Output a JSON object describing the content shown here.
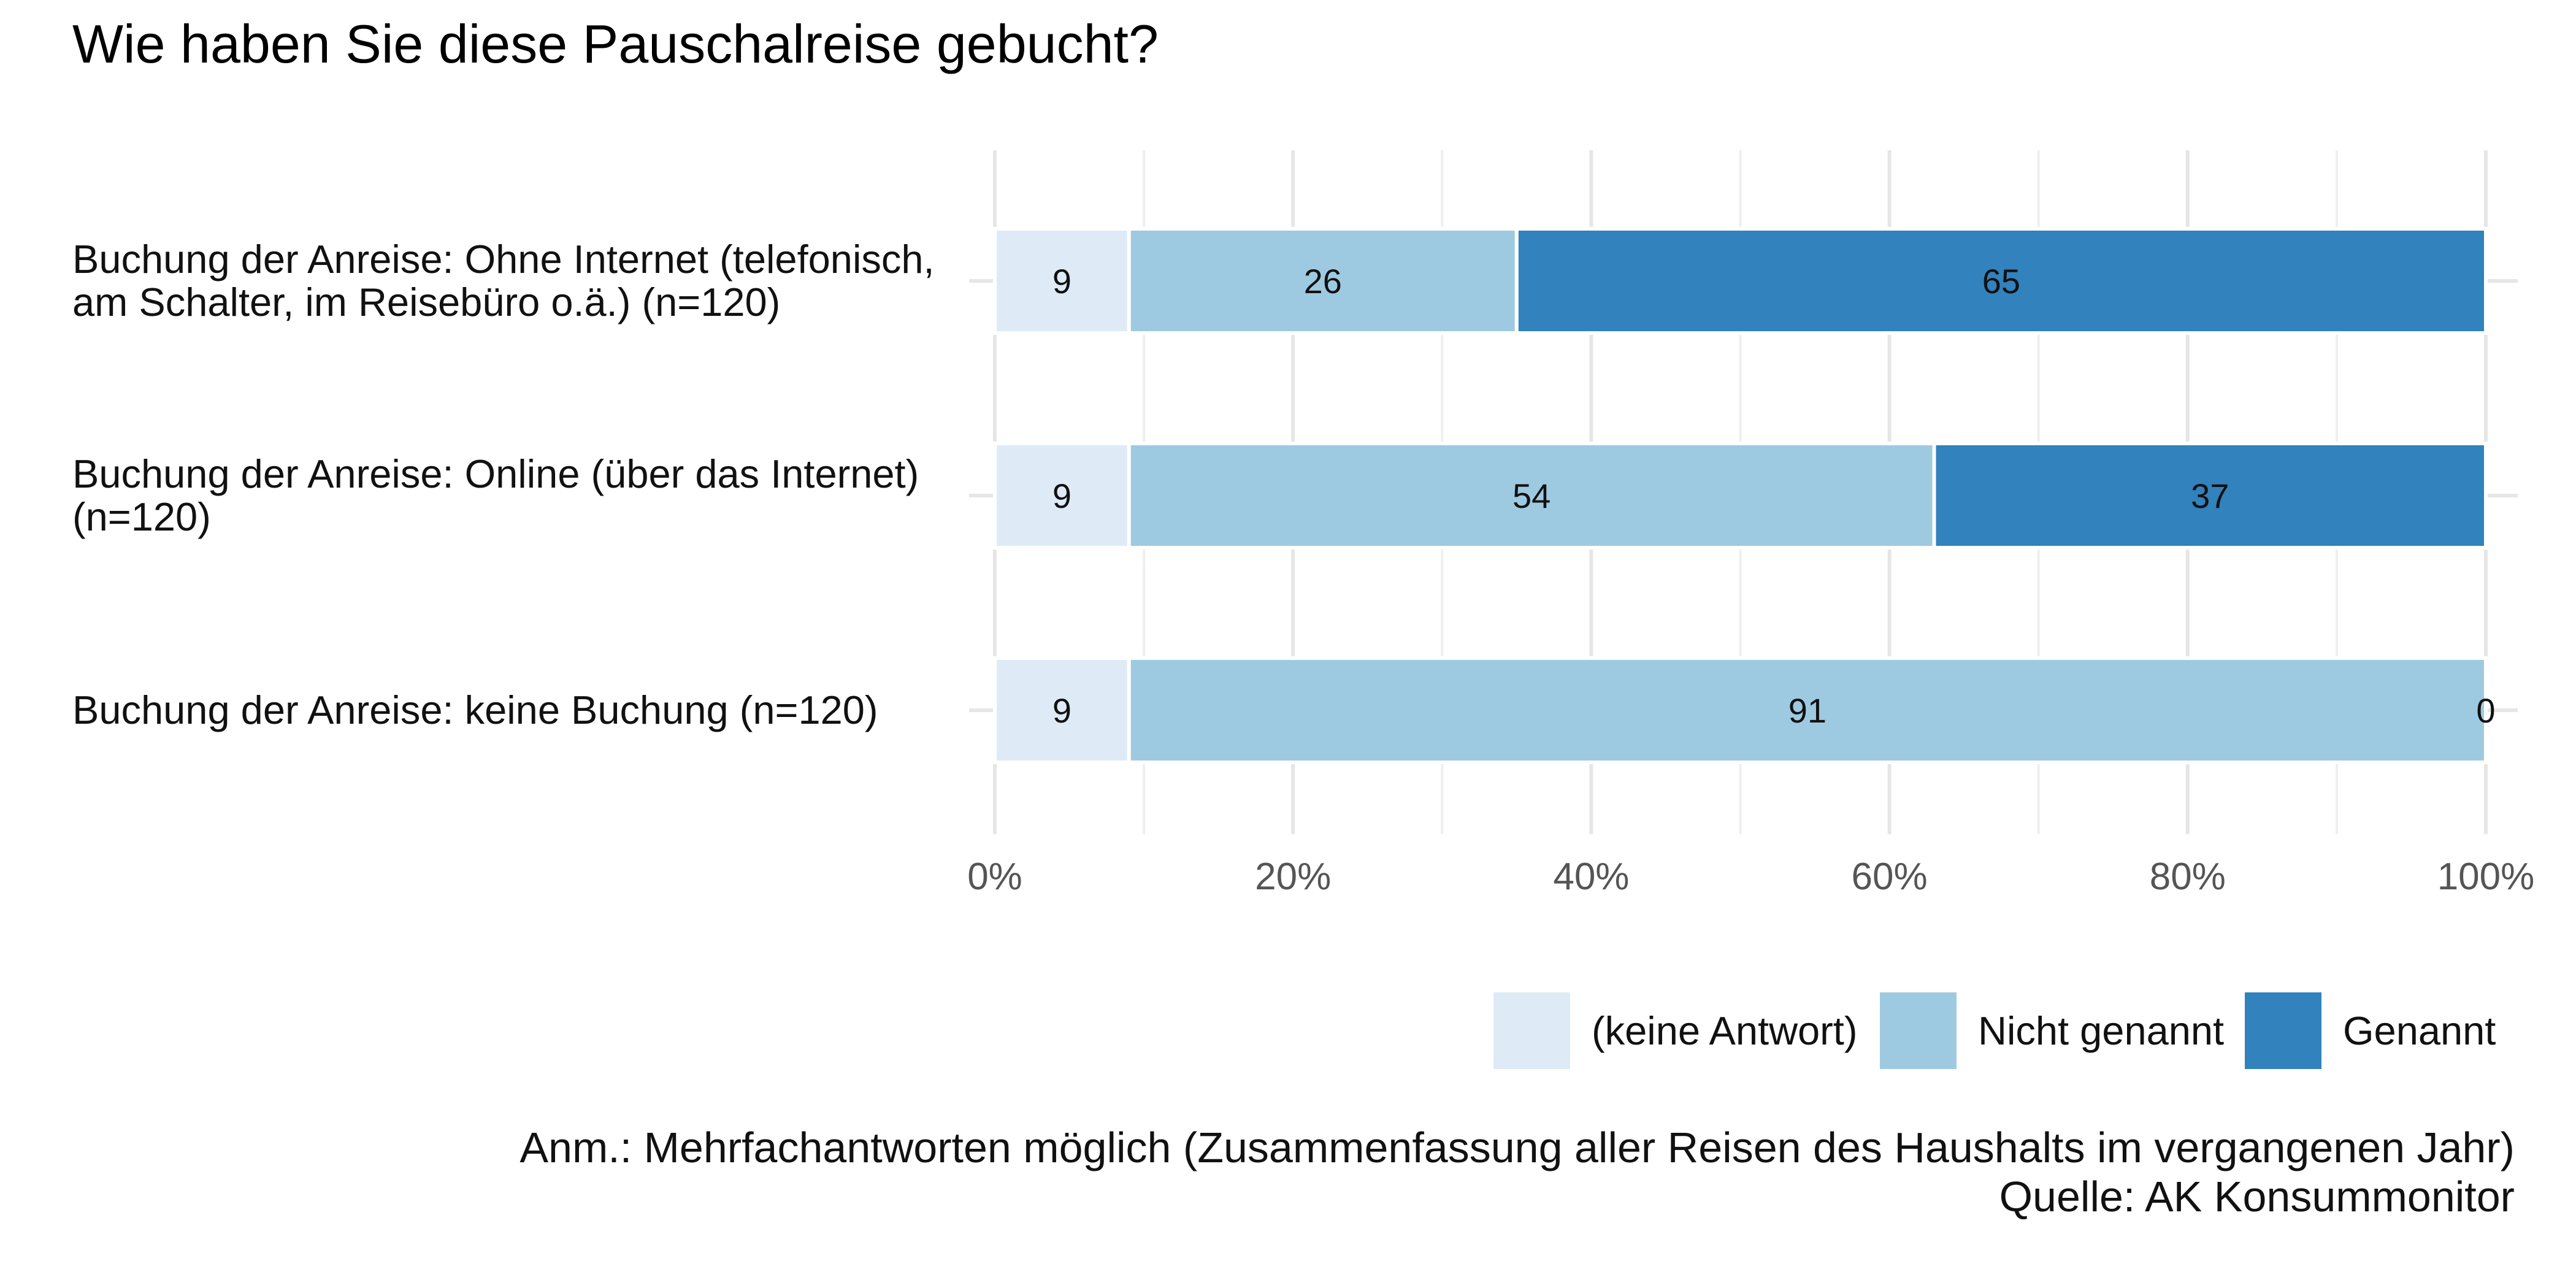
{
  "chart_data": {
    "type": "bar",
    "orientation": "horizontal",
    "stacked": true,
    "title": "Wie haben Sie diese Pauschalreise gebucht?",
    "xlabel": "",
    "ylabel": "",
    "xlim": [
      0,
      100
    ],
    "x_ticks": [
      "0%",
      "20%",
      "40%",
      "60%",
      "80%",
      "100%"
    ],
    "grid": true,
    "legend_position": "bottom-right",
    "categories": [
      [
        "Buchung der Anreise: Ohne Internet (telefonisch,",
        "am Schalter, im Reisebüro o.ä.) (n=120)"
      ],
      [
        "Buchung der Anreise: Online (über das Internet)",
        "(n=120)"
      ],
      [
        "Buchung der Anreise: keine Buchung (n=120)"
      ]
    ],
    "series": [
      {
        "name": "(keine Antwort)",
        "color": "#deebf7",
        "values": [
          9,
          9,
          9
        ]
      },
      {
        "name": "Nicht genannt",
        "color": "#9ecae1",
        "values": [
          26,
          54,
          91
        ]
      },
      {
        "name": "Genannt",
        "color": "#3182bd",
        "values": [
          65,
          37,
          0
        ]
      }
    ],
    "notes": [
      "Anm.: Mehrfachantworten möglich (Zusammenfassung aller Reisen des Haushalts im vergangenen Jahr)",
      "Quelle: AK Konsummonitor"
    ]
  }
}
